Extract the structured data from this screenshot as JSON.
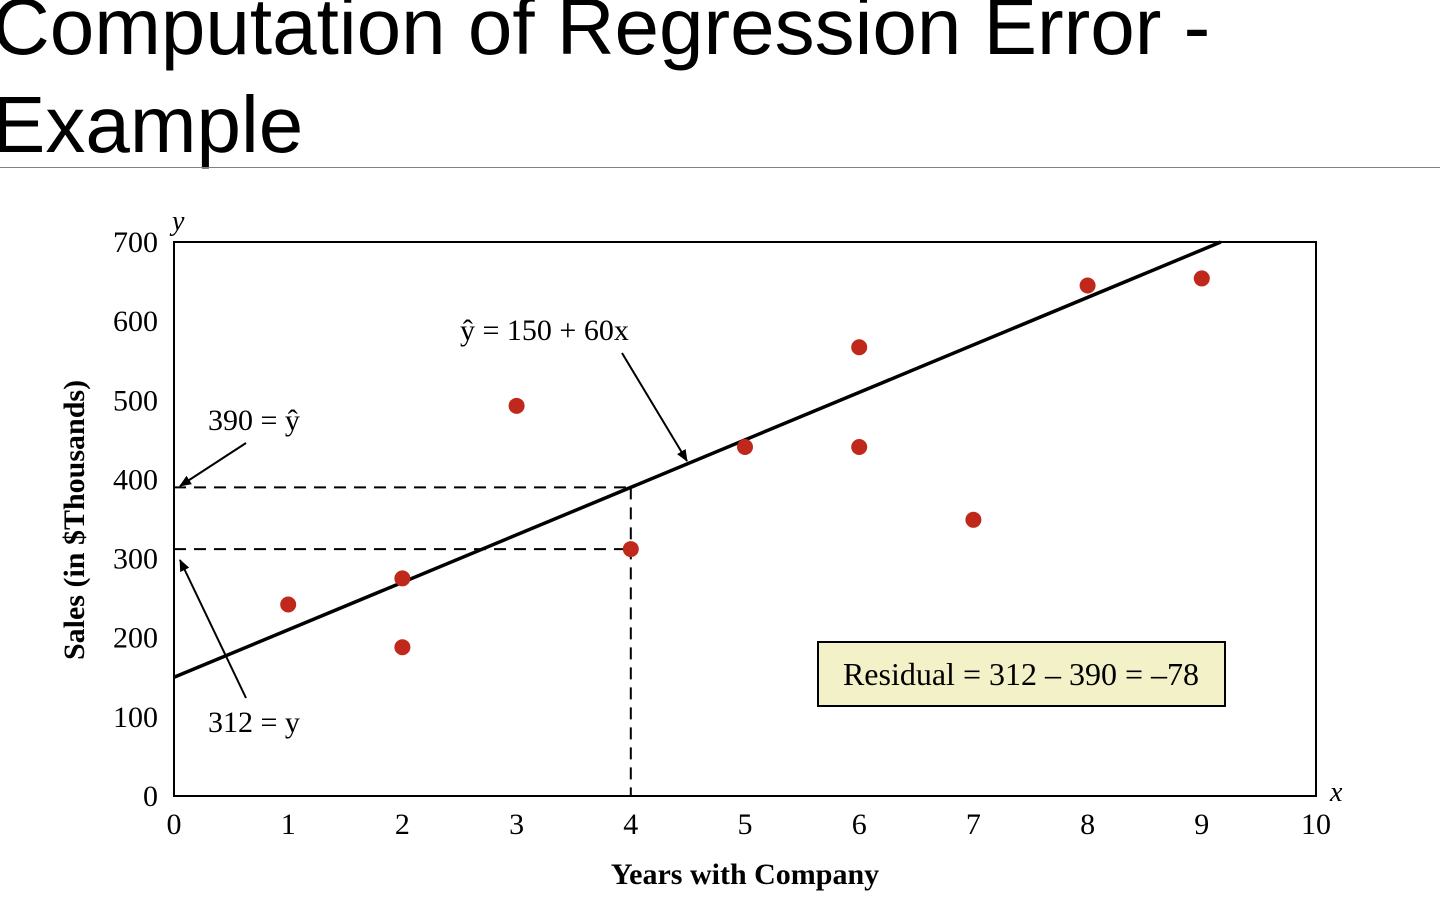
{
  "slide": {
    "title_line1": "Computation of Regression Error -",
    "title_line2": "Example"
  },
  "chart_data": {
    "type": "scatter",
    "xlabel": "Years with Company",
    "ylabel": "Sales (in $Thousands)",
    "x_axis_var": "x",
    "y_axis_var": "y",
    "xlim": [
      0,
      10
    ],
    "ylim": [
      0,
      700
    ],
    "x_ticks": [
      0,
      1,
      2,
      3,
      4,
      5,
      6,
      7,
      8,
      9,
      10
    ],
    "y_ticks": [
      0,
      100,
      200,
      300,
      400,
      500,
      600,
      700
    ],
    "grid": false,
    "points": [
      {
        "x": 1,
        "y": 242
      },
      {
        "x": 2,
        "y": 275
      },
      {
        "x": 2,
        "y": 188
      },
      {
        "x": 3,
        "y": 493
      },
      {
        "x": 4,
        "y": 312
      },
      {
        "x": 5,
        "y": 441
      },
      {
        "x": 6,
        "y": 567
      },
      {
        "x": 6,
        "y": 441
      },
      {
        "x": 7,
        "y": 349
      },
      {
        "x": 8,
        "y": 645
      },
      {
        "x": 9,
        "y": 654
      }
    ],
    "regression_line": {
      "intercept": 150,
      "slope": 60,
      "label": "ŷ = 150 + 60x"
    },
    "annotations": {
      "yhat_label": "390 = ŷ",
      "y_label": "312 = y",
      "residual": "Residual = 312 – 390 = –78"
    },
    "highlight": {
      "x": 4,
      "y": 312,
      "yhat": 390
    },
    "colors": {
      "point": "#c0281b",
      "line": "#000000",
      "residual_box": "#f2f1c7"
    }
  }
}
